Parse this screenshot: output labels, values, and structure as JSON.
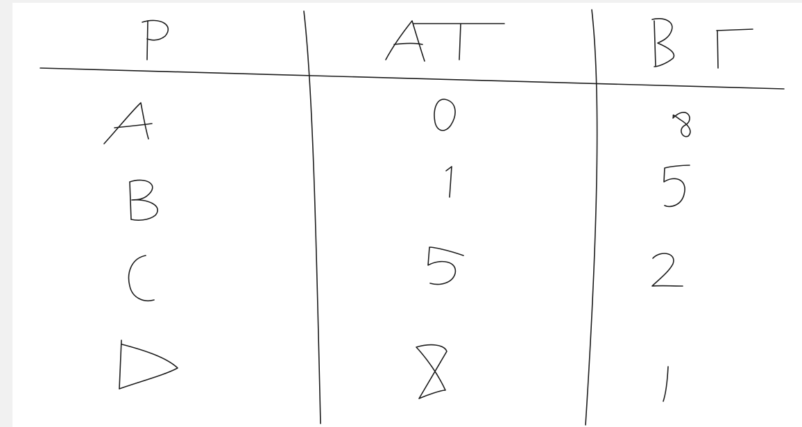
{
  "table": {
    "headers": [
      "P",
      "AT",
      "BT"
    ],
    "rows": [
      [
        "A",
        "0",
        "8"
      ],
      [
        "B",
        "1",
        "5"
      ],
      [
        "C",
        "5",
        "2"
      ],
      [
        "D",
        "8",
        "1"
      ]
    ]
  },
  "colors": {
    "ink": "#1b1b1b",
    "paper": "#ffffff",
    "margin": "#f1f1f1"
  }
}
